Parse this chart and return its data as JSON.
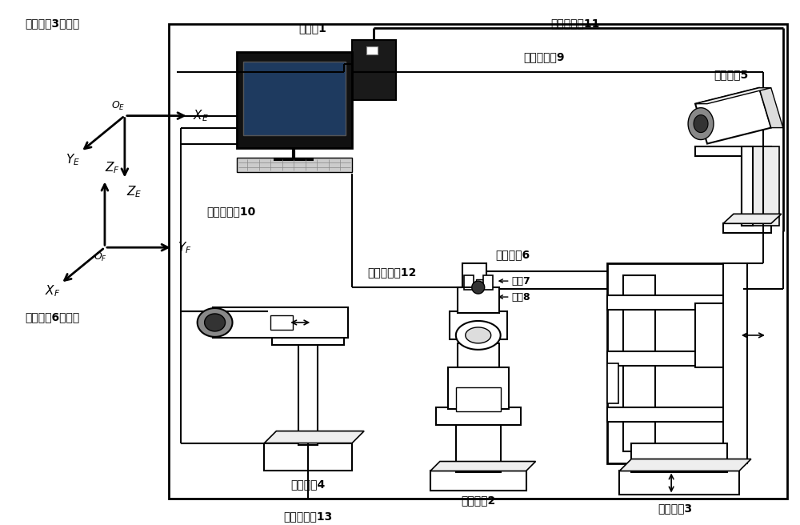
{
  "bg_color": "#ffffff",
  "lc": "#000000",
  "labels": {
    "computer": "计算机1",
    "control_line1": "第一控制线11",
    "vision_line9": "视觉联接线9",
    "vision_sys5": "视觉系统5",
    "vision_line10": "视觉联接线10",
    "force_sensor6": "力传感器6",
    "control_line2": "第二控制线12",
    "part7": "零件7",
    "part8": "零件8",
    "vision_sys4": "视觉系统4",
    "control_line3": "第三控制线13",
    "actuator2": "执行机构2",
    "actuator3": "执行机构3",
    "coord_E": "执行机构3坐标系",
    "coord_F": "力传感器6坐标系"
  }
}
